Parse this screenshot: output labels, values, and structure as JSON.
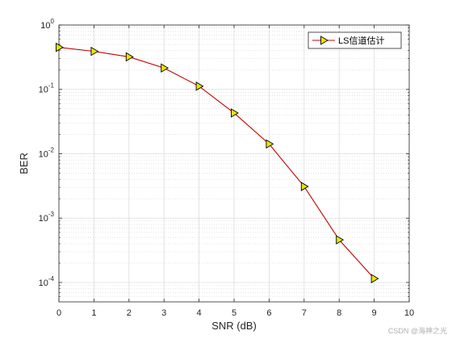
{
  "chart_data": {
    "type": "line",
    "xlabel": "SNR (dB)",
    "ylabel": "BER",
    "xlim": [
      0,
      10
    ],
    "ylim": [
      5e-05,
      1
    ],
    "yscale": "log",
    "grid": true,
    "minor_grid": true,
    "legend_position": "top-right",
    "x_ticks": [
      "0",
      "1",
      "2",
      "3",
      "4",
      "5",
      "6",
      "7",
      "8",
      "9",
      "10"
    ],
    "y_ticks": [
      {
        "base": "10",
        "exp": "0"
      },
      {
        "base": "10",
        "exp": "-1"
      },
      {
        "base": "10",
        "exp": "-2"
      },
      {
        "base": "10",
        "exp": "-3"
      },
      {
        "base": "10",
        "exp": "-4"
      }
    ],
    "series": [
      {
        "name": "LS信道估计",
        "color": "#c00000",
        "marker": "triangle-right",
        "marker_fill": "#e6e600",
        "x": [
          0,
          1,
          2,
          3,
          4,
          5,
          6,
          7,
          8,
          9
        ],
        "values": [
          0.45,
          0.39,
          0.32,
          0.215,
          0.112,
          0.043,
          0.0142,
          0.0031,
          0.00046,
          0.000115
        ]
      }
    ]
  },
  "watermark": "CSDN @海神之光"
}
